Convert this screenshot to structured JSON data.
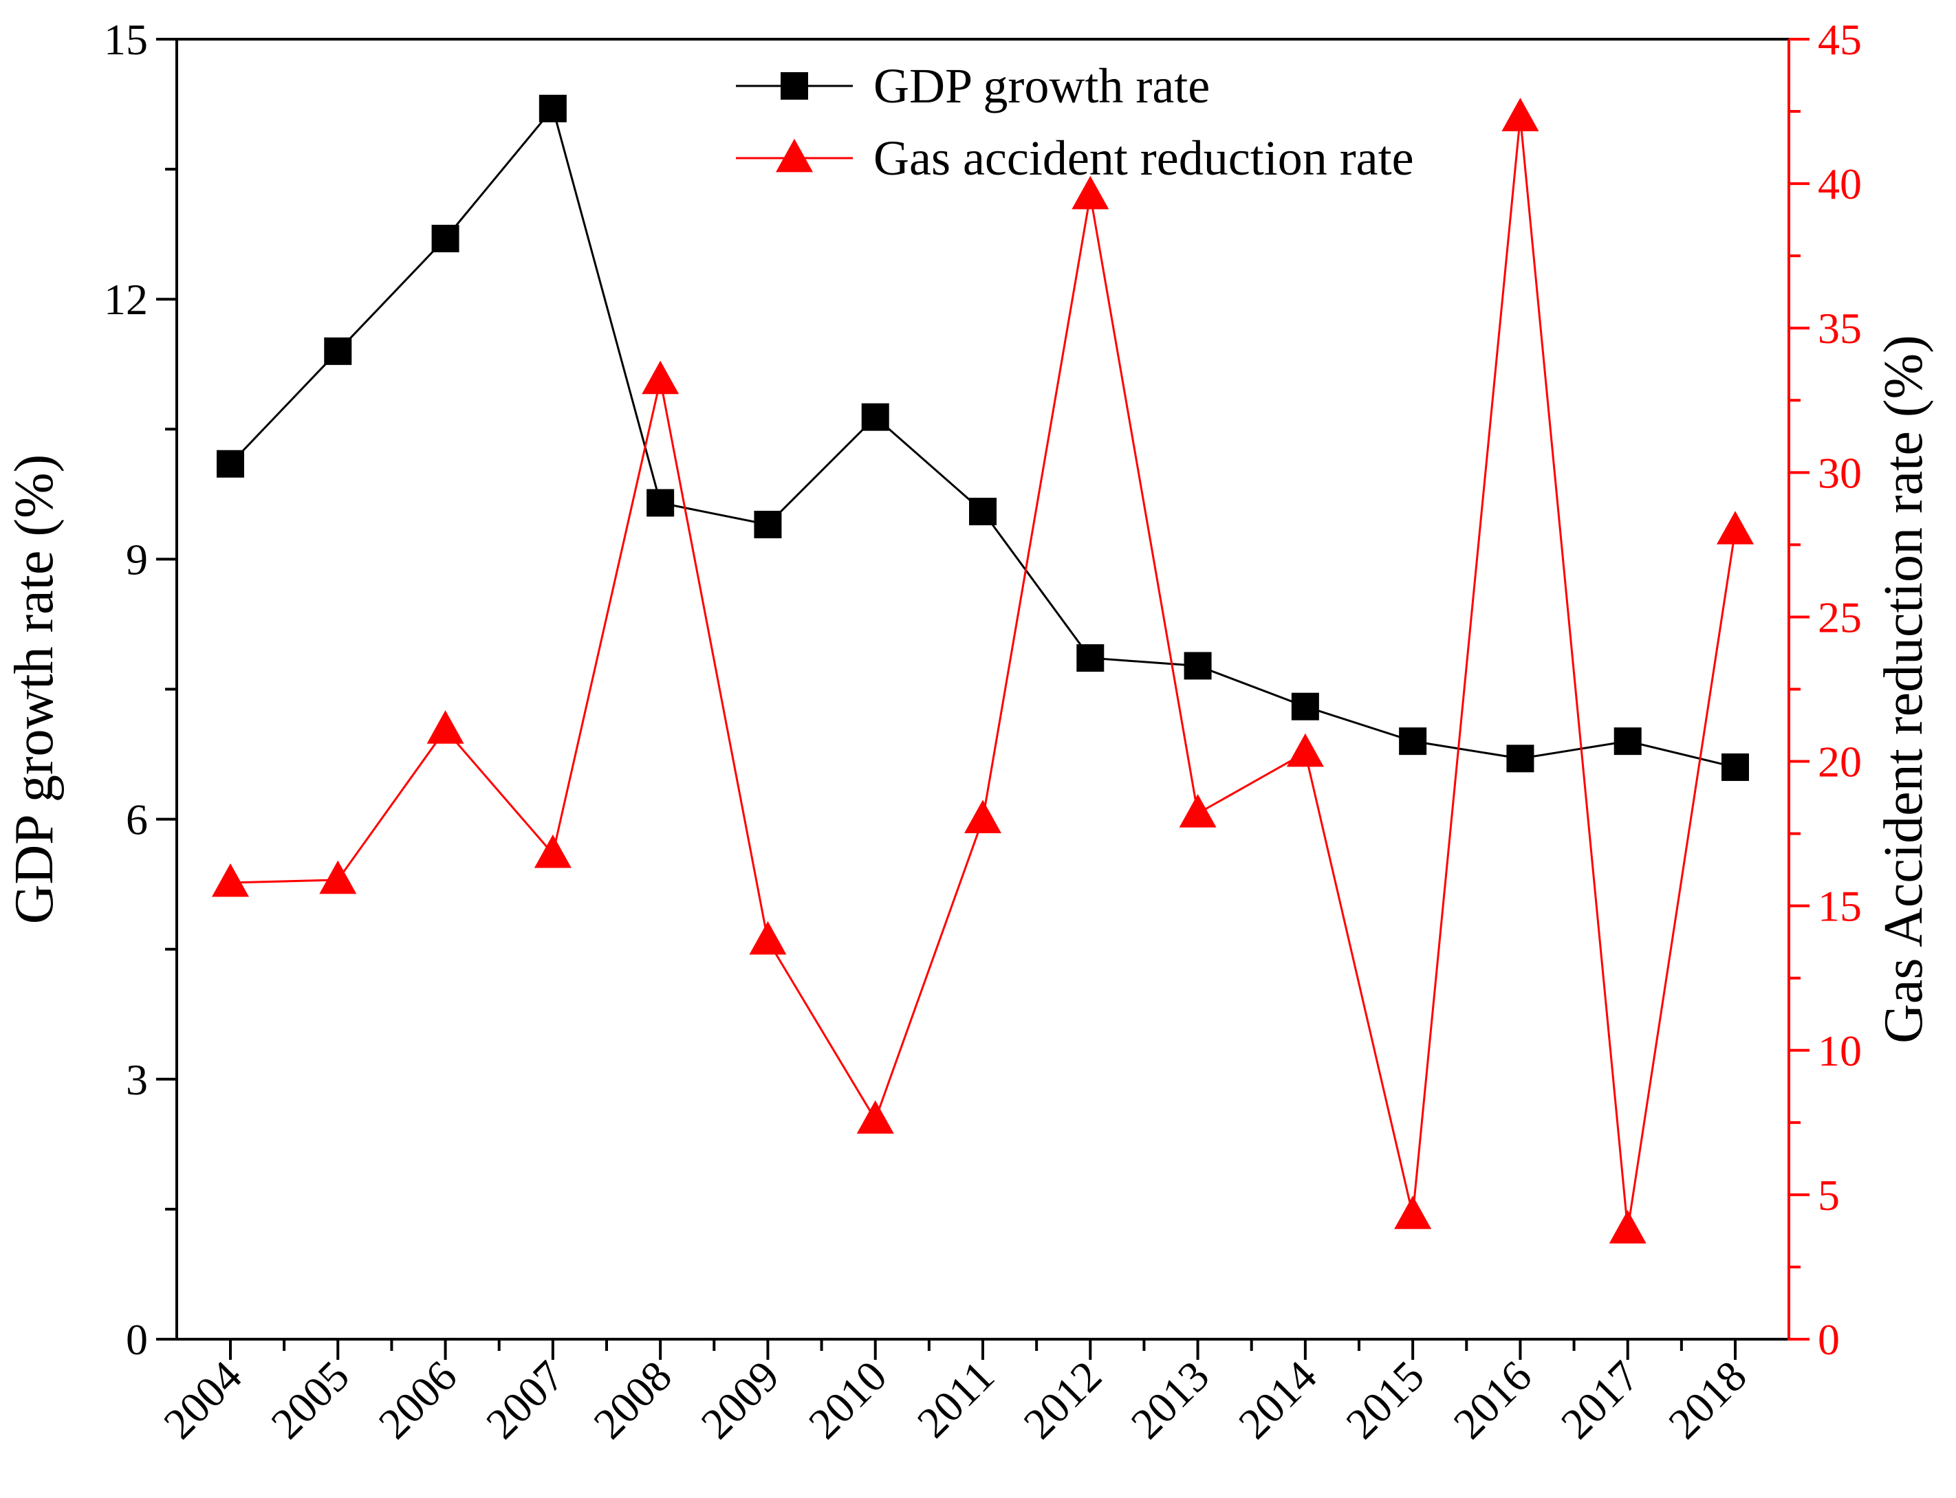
{
  "chart_data": {
    "type": "line",
    "categories": [
      "2004",
      "2005",
      "2006",
      "2007",
      "2008",
      "2009",
      "2010",
      "2011",
      "2012",
      "2013",
      "2014",
      "2015",
      "2016",
      "2017",
      "2018"
    ],
    "series": [
      {
        "name": "GDP growth rate",
        "axis": "left",
        "color": "#000000",
        "marker": "square",
        "values": [
          10.1,
          11.4,
          12.7,
          14.2,
          9.65,
          9.4,
          10.64,
          9.55,
          7.86,
          7.77,
          7.3,
          6.9,
          6.7,
          6.9,
          6.6
        ]
      },
      {
        "name": "Gas accident reduction rate",
        "axis": "right",
        "color": "#ff0000",
        "marker": "triangle",
        "values": [
          15.8,
          15.9,
          21.1,
          16.8,
          33.2,
          13.8,
          7.6,
          18.0,
          39.6,
          18.2,
          20.3,
          4.3,
          42.3,
          3.8,
          28.0
        ]
      }
    ],
    "ylabel_left": "GDP growth rate (%)",
    "ylabel_right": "Gas Accident reduction rate (%)",
    "xlabel": "",
    "ylim_left": [
      0,
      15
    ],
    "yticks_left": [
      "0",
      "3",
      "6",
      "9",
      "12",
      "15"
    ],
    "ylim_right": [
      0,
      45
    ],
    "yticks_right": [
      "0",
      "5",
      "10",
      "15",
      "20",
      "25",
      "30",
      "35",
      "40",
      "45"
    ],
    "legend_position": "top-center",
    "grid": false
  }
}
